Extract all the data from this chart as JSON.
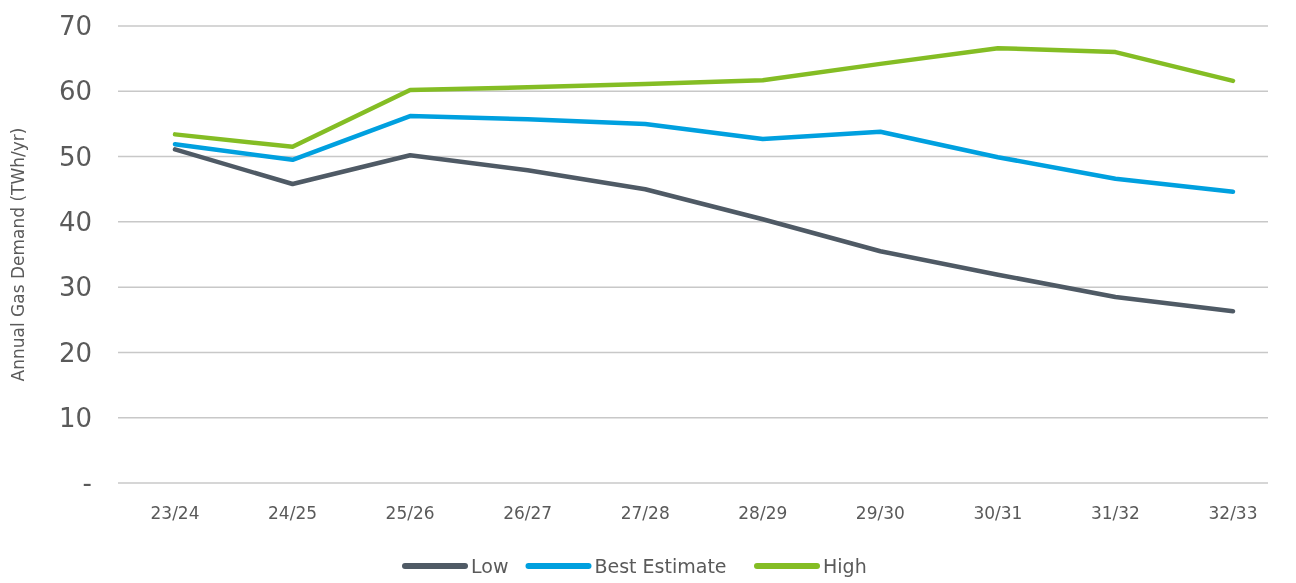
{
  "chart_data": {
    "type": "line",
    "ylabel": "Annual Gas Demand (TWh/yr)",
    "categories": [
      "23/24",
      "24/25",
      "25/26",
      "26/27",
      "27/28",
      "28/29",
      "29/30",
      "30/31",
      "31/32",
      "32/33"
    ],
    "series": [
      {
        "name": "Low",
        "color": "#4f5a65",
        "values": [
          51.1,
          45.8,
          50.2,
          47.9,
          45.0,
          40.4,
          35.5,
          31.9,
          28.5,
          26.3
        ]
      },
      {
        "name": "Best Estimate",
        "color": "#00a0df",
        "values": [
          51.9,
          49.5,
          56.2,
          55.7,
          55.0,
          52.7,
          53.8,
          49.9,
          46.6,
          44.6
        ]
      },
      {
        "name": "High",
        "color": "#84bd24",
        "values": [
          53.4,
          51.5,
          60.2,
          60.6,
          61.1,
          61.7,
          64.2,
          66.6,
          66.0,
          61.6
        ]
      }
    ],
    "ylim": [
      0,
      70
    ],
    "yticks": [
      {
        "value": 0,
        "label": "-"
      },
      10,
      20,
      30,
      40,
      50,
      60,
      70
    ],
    "grid": "y",
    "legend": "bottom",
    "marker": "none",
    "line_style": "solid"
  }
}
